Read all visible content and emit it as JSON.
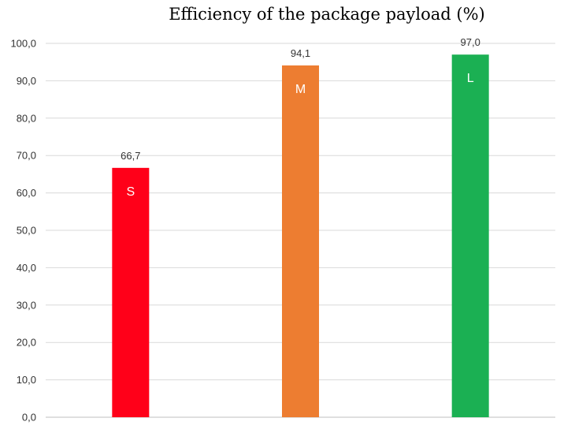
{
  "chart_data": {
    "type": "bar",
    "title": "Efficiency of the package payload (%)",
    "categories": [
      "S",
      "M",
      "L"
    ],
    "values": [
      66.7,
      94.1,
      97.0
    ],
    "value_labels": [
      "66,7",
      "94,1",
      "97,0"
    ],
    "colors": [
      "#ff0019",
      "#ed7d31",
      "#1bb053"
    ],
    "ylim": [
      0,
      100
    ],
    "yticks": [
      0,
      10,
      20,
      30,
      40,
      50,
      60,
      70,
      80,
      90,
      100
    ],
    "ytick_labels": [
      "0,0",
      "10,0",
      "20,0",
      "30,0",
      "40,0",
      "50,0",
      "60,0",
      "70,0",
      "80,0",
      "90,0",
      "100,0"
    ],
    "grid": true,
    "legend": "none",
    "xlabel": "",
    "ylabel": ""
  }
}
